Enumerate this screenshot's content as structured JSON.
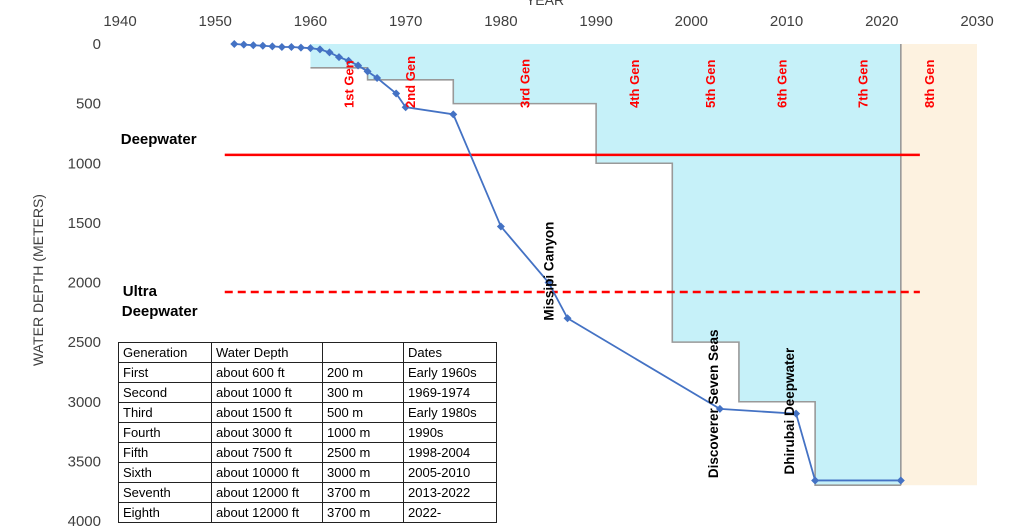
{
  "chart_data": {
    "type": "line",
    "xlabel": "YEAR",
    "ylabel": "WATER DEPTH (METERS)",
    "xlim": [
      1940,
      2030
    ],
    "ylim": [
      4000,
      0
    ],
    "y_reversed": true,
    "x_ticks": [
      "1940",
      "1950",
      "1960",
      "1970",
      "1980",
      "1990",
      "2000",
      "2010",
      "2020",
      "2030"
    ],
    "y_ticks": [
      "0",
      "500",
      "1000",
      "1500",
      "2000",
      "2500",
      "3000",
      "3500",
      "4000"
    ],
    "series": [
      {
        "color": "#4472c4",
        "marker": "diamond",
        "x": [
          1952,
          1953,
          1954,
          1955,
          1956,
          1957,
          1958,
          1959,
          1960,
          1961,
          1962,
          1963,
          1964,
          1965,
          1966,
          1967,
          1969,
          1970,
          1975,
          1980,
          1985,
          1987,
          2003,
          2011,
          2013,
          2022
        ],
        "y": [
          0,
          5,
          10,
          15,
          20,
          25,
          25,
          30,
          35,
          45,
          70,
          110,
          140,
          180,
          230,
          285,
          415,
          530,
          590,
          1530,
          2000,
          2300,
          3060,
          3100,
          3660,
          3660
        ]
      }
    ],
    "generation_steps": {
      "fill_color": "#c6f1f9",
      "line_color": "#999999",
      "x": [
        1960,
        1966,
        1966,
        1969,
        1969,
        1975,
        1975,
        1990,
        1990,
        1998,
        1998,
        2005,
        2005,
        2013,
        2013,
        2022
      ],
      "y": [
        200,
        200,
        300,
        300,
        300,
        300,
        500,
        500,
        1000,
        1000,
        2500,
        2500,
        3000,
        3000,
        3700,
        3700
      ]
    },
    "future_band": {
      "x": [
        2022,
        2030
      ],
      "ylim": [
        0,
        3700
      ],
      "color": "#fdf2e0"
    },
    "generation_labels": [
      {
        "text": "1st Gen",
        "x": 1964.5
      },
      {
        "text": "2nd Gen",
        "x": 1971
      },
      {
        "text": "3rd Gen",
        "x": 1983
      },
      {
        "text": "4th Gen",
        "x": 1994.5
      },
      {
        "text": "5th Gen",
        "x": 2002.5
      },
      {
        "text": "6th Gen",
        "x": 2010
      },
      {
        "text": "7th Gen",
        "x": 2018.5
      },
      {
        "text": "8th Gen",
        "x": 2025.5
      }
    ],
    "reference_lines": [
      {
        "label": "Deepwater",
        "y": 930,
        "x_range": [
          1951,
          2024
        ],
        "color": "#ff0000",
        "style": "solid"
      },
      {
        "label_lines": [
          "Ultra",
          "Deepwater"
        ],
        "y": 2080,
        "x_range": [
          1951,
          2024
        ],
        "color": "#ff0000",
        "style": "dashed"
      }
    ],
    "annotations": [
      {
        "text": "Missipi Canyon",
        "x": 1985.5,
        "y": 2320
      },
      {
        "text": "Discoverer Seven Seas",
        "x": 2002.8,
        "y": 3640
      },
      {
        "text": "Dhirubai Deepwater",
        "x": 2010.8,
        "y": 3610
      }
    ],
    "table": {
      "columns": [
        "Generation",
        "Water Depth",
        "",
        "Dates"
      ],
      "rows": [
        [
          "First",
          "about 600 ft",
          "200 m",
          "Early 1960s"
        ],
        [
          "Second",
          "about 1000 ft",
          "300 m",
          "1969-1974"
        ],
        [
          "Third",
          "about 1500 ft",
          "500 m",
          "Early 1980s"
        ],
        [
          "Fourth",
          "about 3000 ft",
          "1000 m",
          "1990s"
        ],
        [
          "Fifth",
          "about 7500 ft",
          "2500 m",
          "1998-2004"
        ],
        [
          "Sixth",
          "about 10000 ft",
          "3000 m",
          "2005-2010"
        ],
        [
          "Seventh",
          "about 12000 ft",
          "3700 m",
          "2013-2022"
        ],
        [
          "Eighth",
          "about 12000 ft",
          "3700 m",
          "2022-"
        ]
      ]
    }
  }
}
